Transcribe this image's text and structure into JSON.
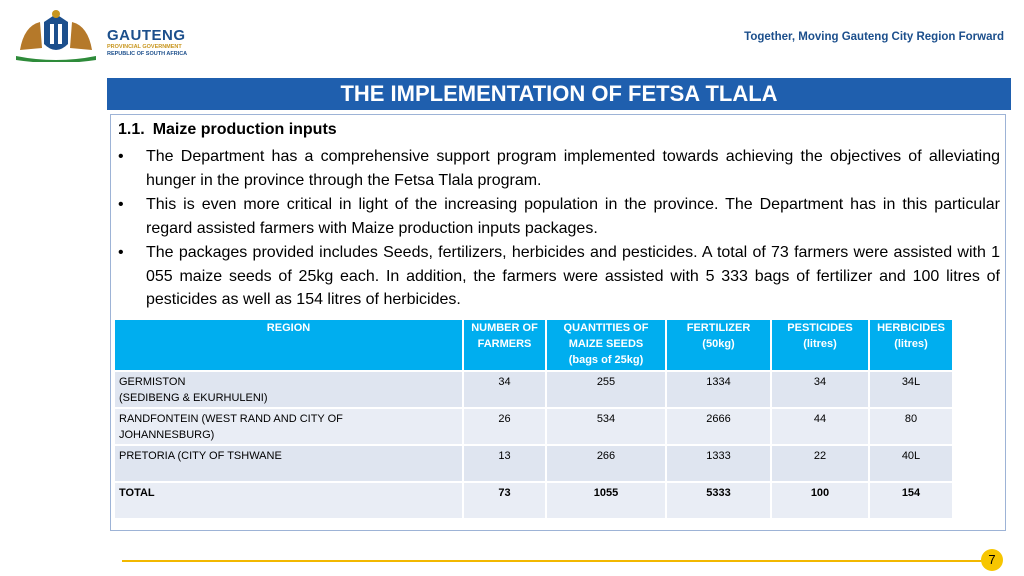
{
  "header": {
    "logo": {
      "name": "GAUTENG",
      "line1": "PROVINCIAL GOVERNMENT",
      "line2": "REPUBLIC OF SOUTH AFRICA"
    },
    "tagline": "Together, Moving Gauteng City Region Forward"
  },
  "title": "THE IMPLEMENTATION OF FETSA TLALA",
  "section": {
    "number": "1.1.",
    "heading": "Maize production inputs",
    "bullets": [
      "The Department has a comprehensive support program implemented towards achieving the objectives of alleviating hunger in the province through the Fetsa Tlala program.",
      "This is even more critical in light of the increasing population in the province. The Department has in this particular regard assisted farmers with Maize production inputs packages.",
      "The packages provided includes Seeds, fertilizers, herbicides and pesticides.  A total of 73 farmers were assisted with 1 055 maize seeds of 25kg each. In addition, the farmers were assisted with 5 333 bags of fertilizer and 100 litres of pesticides as well as 154 litres of herbicides."
    ]
  },
  "table": {
    "headers": [
      [
        "REGION"
      ],
      [
        "NUMBER OF",
        "FARMERS"
      ],
      [
        "QUANTITIES OF",
        "MAIZE SEEDS",
        "(bags of 25kg)"
      ],
      [
        "FERTILIZER",
        "(50kg)"
      ],
      [
        "PESTICIDES",
        "(litres)"
      ],
      [
        "HERBICIDES",
        "(litres)"
      ]
    ],
    "rows": [
      [
        "GERMISTON\n(SEDIBENG & EKURHULENI)",
        "34",
        "255",
        "1334",
        "34",
        "34L"
      ],
      [
        "RANDFONTEIN (WEST RAND AND CITY OF\nJOHANNESBURG)",
        "26",
        "534",
        "2666",
        "44",
        "80"
      ],
      [
        "PRETORIA (CITY OF TSHWANE",
        "13",
        "266",
        "1333",
        "22",
        "40L"
      ],
      [
        "TOTAL",
        "73",
        "1055",
        "5333",
        "100",
        "154"
      ]
    ]
  },
  "page_number": "7"
}
